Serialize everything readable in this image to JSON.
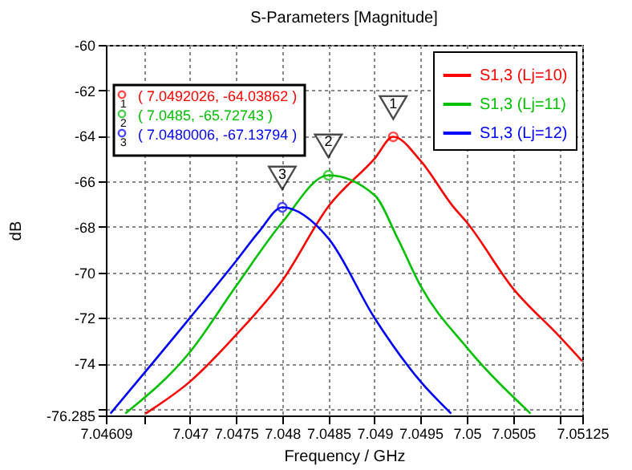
{
  "chart_data": {
    "type": "line",
    "title": "S-Parameters [Magnitude]",
    "xlabel": "Frequency / GHz",
    "ylabel": "dB",
    "xlim": [
      7.04609,
      7.05125
    ],
    "ylim": [
      -76.285,
      -60
    ],
    "xticks": [
      7.04609,
      {
        "value": 7.0465,
        "label": null
      },
      7.047,
      7.0475,
      7.048,
      7.0485,
      7.049,
      7.0495,
      7.05,
      7.0505,
      {
        "value": 7.051,
        "label": null
      },
      7.05125
    ],
    "yticks": [
      -76.285,
      {
        "value": -76,
        "label": null
      },
      -74,
      -72,
      -70,
      -68,
      -66,
      -64,
      -62,
      -60
    ],
    "grid": true,
    "legend": "top right",
    "line_style": "solid",
    "series": [
      {
        "name": "S1,3 (Lj=10)",
        "color": "#ff0000",
        "x": [
          7.04652,
          7.047,
          7.0475,
          7.048,
          7.0485,
          7.049,
          7.0492026,
          7.0495,
          7.04985,
          7.05,
          7.0505,
          7.051,
          7.05125
        ],
        "values": [
          -76.2,
          -74.8,
          -72.75,
          -70.36,
          -67.1,
          -65.0,
          -64.03862,
          -65.1,
          -67.1,
          -67.8,
          -70.7,
          -72.8,
          -73.9
        ]
      },
      {
        "name": "S1,3 (Lj=11)",
        "color": "#00c000",
        "x": [
          7.0463,
          7.047,
          7.0475,
          7.048,
          7.0485,
          7.049,
          7.04925,
          7.0495,
          7.05,
          7.05069
        ],
        "values": [
          -76.2,
          -73.5,
          -70.6,
          -67.8,
          -65.72743,
          -66.6,
          -68.5,
          -70.6,
          -73.3,
          -76.2
        ]
      },
      {
        "name": "S1,3 (Lj=12)",
        "color": "#0000ff",
        "x": [
          7.04614,
          7.047,
          7.0475,
          7.04775,
          7.0480006,
          7.0485,
          7.049,
          7.0495,
          7.04983
        ],
        "values": [
          -76.2,
          -72.0,
          -69.5,
          -68.2,
          -67.13794,
          -68.5,
          -72.0,
          -74.8,
          -76.2
        ]
      }
    ],
    "annotations": [
      {
        "text": "1",
        "x": 7.0492026,
        "y": -64.03862
      },
      {
        "text": "2",
        "x": 7.0485,
        "y": -65.72743
      },
      {
        "text": "3",
        "x": 7.0480006,
        "y": -67.13794
      },
      "( 7.0492026, -64.03862 )",
      "( 7.0485, -65.72743 )",
      "( 7.0480006, -67.13794 )"
    ]
  }
}
